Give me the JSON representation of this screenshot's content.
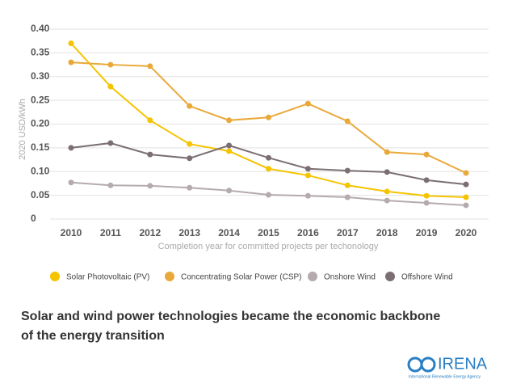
{
  "chart_data": {
    "type": "line",
    "y_label": "2020 USD/kWh",
    "x_label": "Completion year for committed projects per techonology",
    "categories": [
      "2010",
      "2011",
      "2012",
      "2013",
      "2014",
      "2015",
      "2016",
      "2017",
      "2018",
      "2019",
      "2020"
    ],
    "series": [
      {
        "name": "Solar Photovoltaic (PV)",
        "color": "#f5c400",
        "values": [
          0.37,
          0.279,
          0.208,
          0.158,
          0.143,
          0.106,
          0.092,
          0.071,
          0.058,
          0.049,
          0.046
        ]
      },
      {
        "name": "Concentrating Solar Power (CSP)",
        "color": "#e9a93a",
        "values": [
          0.33,
          0.325,
          0.322,
          0.238,
          0.208,
          0.214,
          0.243,
          0.206,
          0.141,
          0.136,
          0.097
        ]
      },
      {
        "name": "Onshore Wind",
        "color": "#b5abaf",
        "values": [
          0.077,
          0.071,
          0.07,
          0.066,
          0.06,
          0.051,
          0.049,
          0.046,
          0.039,
          0.034,
          0.029
        ]
      },
      {
        "name": "Offshore Wind",
        "color": "#7b6f74",
        "values": [
          0.15,
          0.16,
          0.136,
          0.128,
          0.155,
          0.129,
          0.106,
          0.102,
          0.099,
          0.082,
          0.073
        ]
      }
    ],
    "ylim": [
      0,
      0.4
    ],
    "yticks": [
      0,
      0.05,
      {
        "value": 0.1,
        "label": "0.10"
      },
      0.15,
      {
        "value": 0.2,
        "label": "0.20"
      },
      0.25,
      {
        "value": 0.3,
        "label": "0.30"
      },
      0.35,
      {
        "value": 0.4,
        "label": "0.40"
      }
    ],
    "grid": true
  },
  "headline": "Solar and wind power technologies became the economic backbone of the energy transition",
  "logo": {
    "name": "IRENA",
    "subtitle": "International Renewable Energy Agency"
  }
}
